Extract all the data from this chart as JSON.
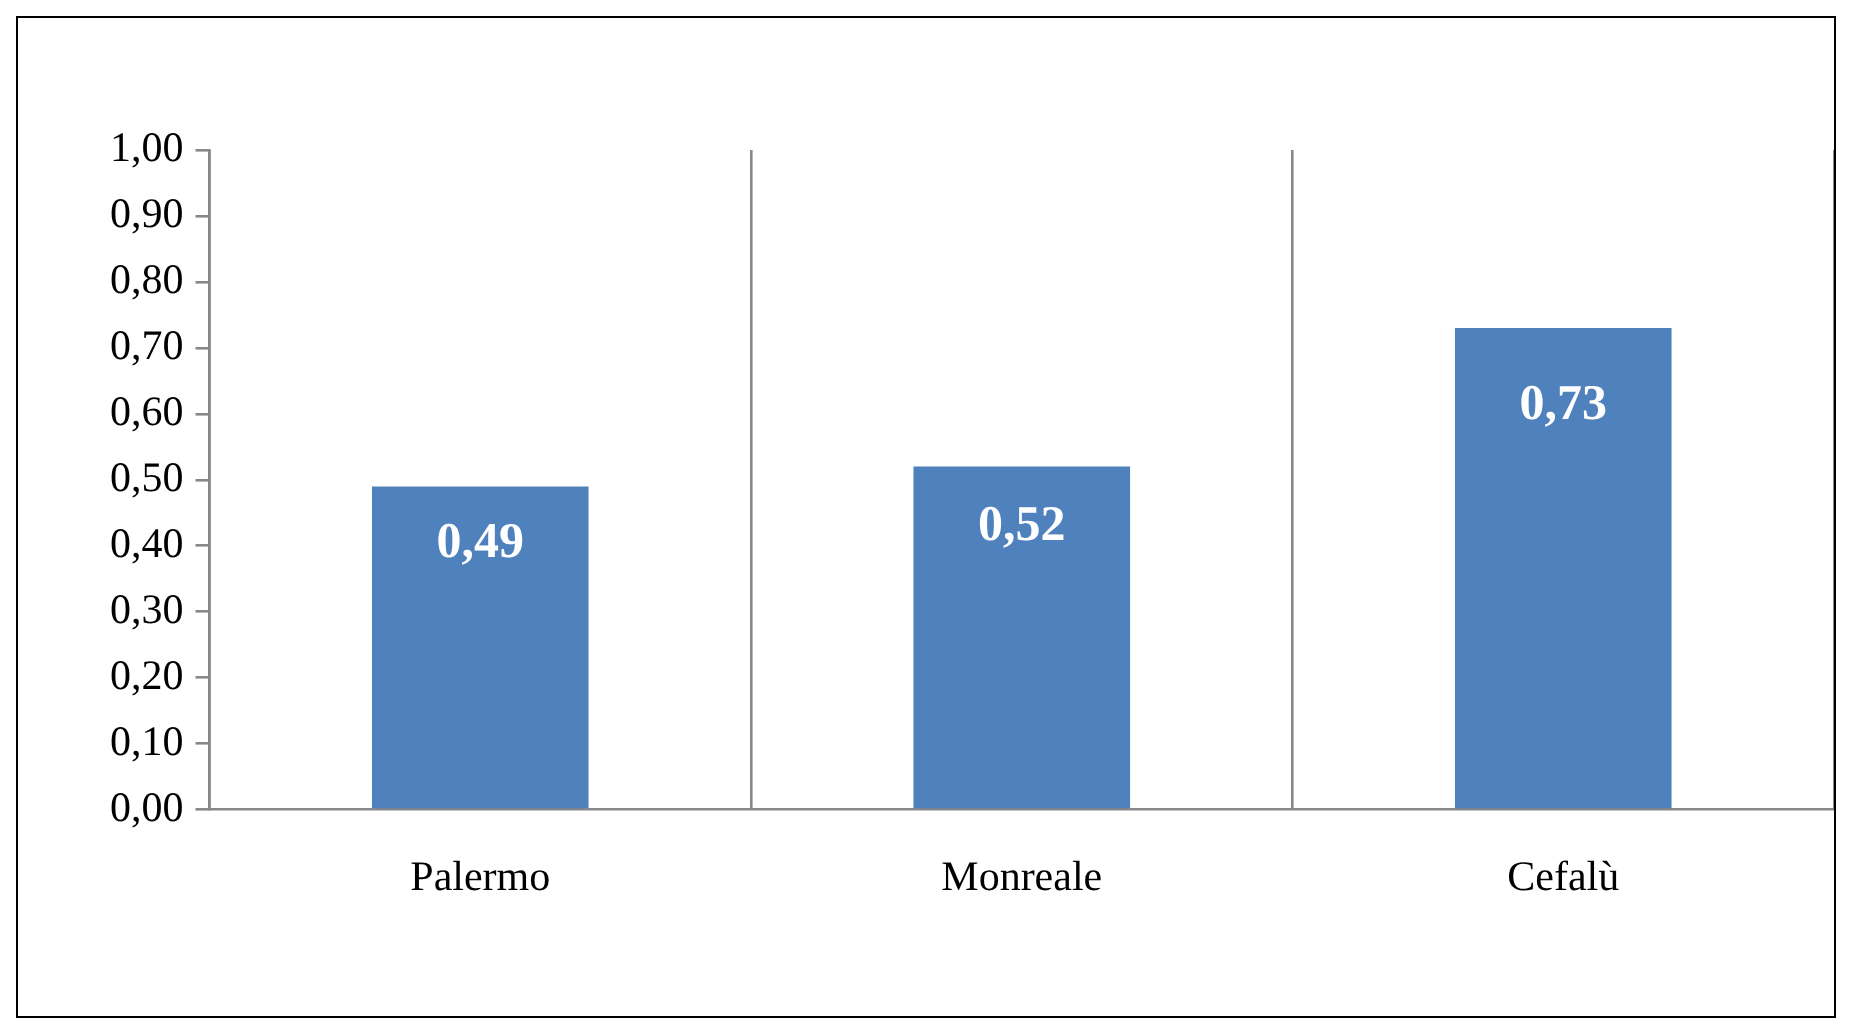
{
  "chart_data": {
    "type": "bar",
    "categories": [
      "Palermo",
      "Monreale",
      "Cefalù"
    ],
    "values": [
      0.49,
      0.52,
      0.73
    ],
    "value_labels": [
      "0,49",
      "0,52",
      "0,73"
    ],
    "color": "#4f81bd",
    "ylim": [
      0,
      1
    ],
    "yticks": [
      {
        "value": 0,
        "label": "0,00"
      },
      {
        "value": 0.1,
        "label": "0,10"
      },
      {
        "value": 0.2,
        "label": "0,20"
      },
      {
        "value": 0.3,
        "label": "0,30"
      },
      {
        "value": 0.4,
        "label": "0,40"
      },
      {
        "value": 0.5,
        "label": "0,50"
      },
      {
        "value": 0.6,
        "label": "0,60"
      },
      {
        "value": 0.7,
        "label": "0,70"
      },
      {
        "value": 0.8,
        "label": "0,80"
      },
      {
        "value": 0.9,
        "label": "0,90"
      },
      {
        "value": 1,
        "label": "1,00"
      }
    ],
    "grid": "x",
    "legend": false
  }
}
